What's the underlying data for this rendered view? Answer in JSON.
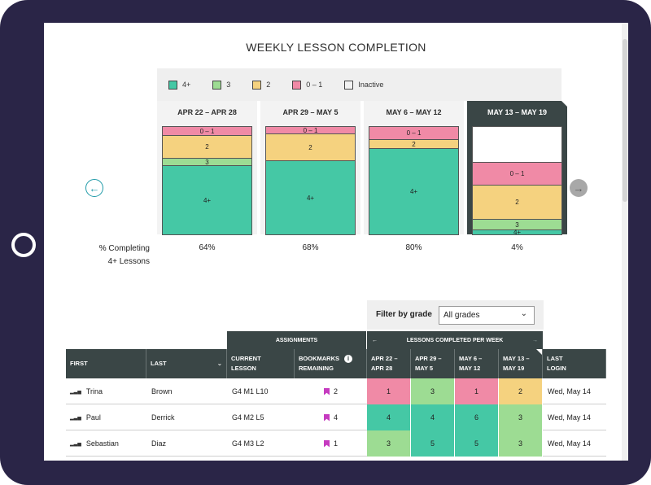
{
  "chart": {
    "title": "WEEKLY LESSON COMPLETION",
    "legend": [
      {
        "label": "4+",
        "color": "#45c8a5"
      },
      {
        "label": "3",
        "color": "#9ddc93"
      },
      {
        "label": "2",
        "color": "#f5d27f"
      },
      {
        "label": "0 – 1",
        "color": "#f08aa6"
      },
      {
        "label": "Inactive",
        "color": "#f2f2f2"
      }
    ],
    "pct_label_line1": "% Completing",
    "pct_label_line2": "4+ Lessons"
  },
  "chart_data": {
    "type": "bar",
    "title": "WEEKLY LESSON COMPLETION",
    "categories": [
      "APR 22 – APR 28",
      "APR 29 – MAY 5",
      "MAY 6 – MAY 12",
      "MAY 13 – MAY 19"
    ],
    "stacked": true,
    "series": [
      {
        "name": "4+",
        "values": [
          64,
          68,
          80,
          4
        ]
      },
      {
        "name": "3",
        "values": [
          7,
          0,
          0,
          10
        ]
      },
      {
        "name": "2",
        "values": [
          21,
          25,
          8,
          32
        ]
      },
      {
        "name": "0 – 1",
        "values": [
          8,
          7,
          12,
          21
        ]
      },
      {
        "name": "Inactive",
        "values": [
          0,
          0,
          0,
          33
        ]
      }
    ],
    "pct_completing": [
      "64%",
      "68%",
      "80%",
      "4%"
    ],
    "active_week": 3,
    "ylim": [
      0,
      100
    ]
  },
  "filter": {
    "label": "Filter by grade",
    "value": "All grades"
  },
  "table": {
    "group_assignments": "ASSIGNMENTS",
    "group_lessons": "LESSONS COMPLETED PER WEEK",
    "headers": {
      "first": "FIRST",
      "last": "LAST",
      "current_lesson_1": "CURRENT",
      "current_lesson_2": "LESSON",
      "bookmarks_1": "BOOKMARKS",
      "bookmarks_2": "REMAINING",
      "w1_1": "APR 22 –",
      "w1_2": "APR 28",
      "w2_1": "APR 29 –",
      "w2_2": "MAY 5",
      "w3_1": "MAY 6 –",
      "w3_2": "MAY 12",
      "w4_1": "MAY 13 –",
      "w4_2": "MAY 19",
      "last_login_1": "LAST",
      "last_login_2": "LOGIN"
    },
    "rows": [
      {
        "first": "Trina",
        "last": "Brown",
        "lesson": "G4 M1 L10",
        "bookmarks": "2",
        "weeks": [
          "1",
          "3",
          "1",
          "2"
        ],
        "login": "Wed, May 14"
      },
      {
        "first": "Paul",
        "last": "Derrick",
        "lesson": "G4 M2 L5",
        "bookmarks": "4",
        "weeks": [
          "4",
          "4",
          "6",
          "3"
        ],
        "login": "Wed, May 14"
      },
      {
        "first": "Sebastian",
        "last": "Diaz",
        "lesson": "G4 M3 L2",
        "bookmarks": "1",
        "weeks": [
          "3",
          "5",
          "5",
          "3"
        ],
        "login": "Wed, May 14"
      }
    ]
  }
}
